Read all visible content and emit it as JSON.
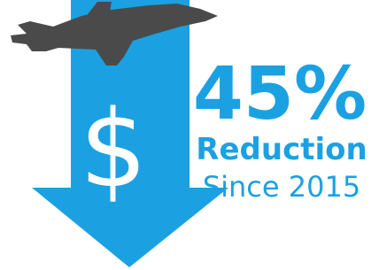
{
  "symbol": "$",
  "headline": "45%",
  "subheading": "Reduction",
  "caption": "Since 2015"
}
